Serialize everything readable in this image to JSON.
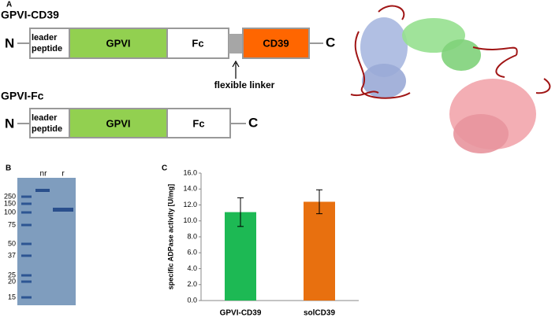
{
  "panel_a": {
    "letter": "A",
    "constructs": [
      {
        "name": "GPVI-CD39",
        "n_term": "N",
        "c_term": "C",
        "segments": [
          "leader peptide",
          "GPVI",
          "Fc",
          "CD39"
        ],
        "annotation": "flexible linker"
      },
      {
        "name": "GPVI-Fc",
        "n_term": "N",
        "c_term": "C",
        "segments": [
          "leader peptide",
          "GPVI",
          "Fc"
        ]
      }
    ]
  },
  "panel_b": {
    "letter": "B",
    "lanes": [
      "nr",
      "r"
    ],
    "markers": [
      "250",
      "150",
      "100",
      "75",
      "50",
      "37",
      "25",
      "20",
      "15"
    ]
  },
  "chart_data": {
    "type": "bar",
    "letter": "C",
    "y_label": "specific ADPase activity [U/mg]",
    "categories": [
      "GPVI-CD39",
      "solCD39"
    ],
    "values": [
      11.1,
      12.4
    ],
    "errors": [
      1.8,
      1.5
    ],
    "colors": [
      "#1db954",
      "#e8700f"
    ],
    "ylim": [
      0,
      16
    ],
    "yticks": [
      {
        "value": 0,
        "label": "0.0"
      },
      {
        "value": 2,
        "label": "2.0"
      },
      {
        "value": 4,
        "label": "4.0"
      },
      {
        "value": 6,
        "label": "6.0"
      },
      {
        "value": 8,
        "label": "8.0"
      },
      {
        "value": 10,
        "label": "10.0"
      },
      {
        "value": 12,
        "label": "12.0"
      },
      {
        "value": 14,
        "label": "14.0"
      },
      {
        "value": 16,
        "label": "16.0"
      }
    ]
  }
}
